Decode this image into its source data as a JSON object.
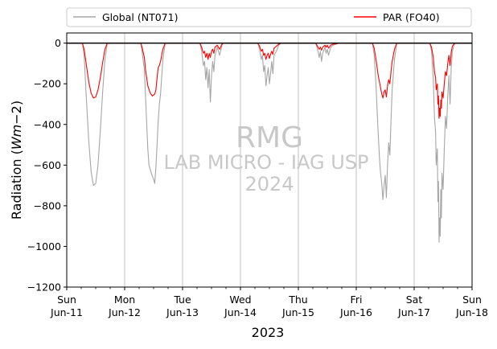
{
  "chart_data": {
    "type": "line",
    "title": "",
    "xlabel": "2023",
    "ylabel_prefix": "Radiation (",
    "ylabel_math": "Wm",
    "ylabel_minus": "−2",
    "ylabel_suffix": ")",
    "ylim": [
      -1200,
      50
    ],
    "xlim": [
      0,
      7
    ],
    "grid_x": true,
    "grid_y": false,
    "legend_placement": "top",
    "yticks": [
      0,
      -200,
      -400,
      -600,
      -800,
      -1000,
      -1200
    ],
    "ytick_labels": [
      "0",
      "−200",
      "−400",
      "−600",
      "−800",
      "−1000",
      "−1200"
    ],
    "xticks": [
      {
        "day": 0,
        "label1": "Sun",
        "label2": "Jun-11"
      },
      {
        "day": 1,
        "label1": "Mon",
        "label2": "Jun-12"
      },
      {
        "day": 2,
        "label1": "Tue",
        "label2": "Jun-13"
      },
      {
        "day": 3,
        "label1": "Wed",
        "label2": "Jun-14"
      },
      {
        "day": 4,
        "label1": "Thu",
        "label2": "Jun-15"
      },
      {
        "day": 5,
        "label1": "Fri",
        "label2": "Jun-16"
      },
      {
        "day": 6,
        "label1": "Sat",
        "label2": "Jun-17"
      },
      {
        "day": 7,
        "label1": "Sun",
        "label2": "Jun-18"
      }
    ],
    "x_unit": "days since Sun Jun-11 2023",
    "series": [
      {
        "name": "Global (NT071)",
        "color": "#a6a6a6",
        "points": [
          [
            0.0,
            0
          ],
          [
            0.27,
            0
          ],
          [
            0.3,
            -60
          ],
          [
            0.34,
            -280
          ],
          [
            0.38,
            -480
          ],
          [
            0.42,
            -630
          ],
          [
            0.46,
            -700
          ],
          [
            0.5,
            -690
          ],
          [
            0.54,
            -600
          ],
          [
            0.58,
            -430
          ],
          [
            0.62,
            -240
          ],
          [
            0.66,
            -80
          ],
          [
            0.7,
            0
          ],
          [
            1.0,
            0
          ],
          [
            1.28,
            0
          ],
          [
            1.3,
            -40
          ],
          [
            1.34,
            -130
          ],
          [
            1.36,
            -260
          ],
          [
            1.4,
            -520
          ],
          [
            1.42,
            -600
          ],
          [
            1.46,
            -640
          ],
          [
            1.5,
            -670
          ],
          [
            1.52,
            -690
          ],
          [
            1.54,
            -610
          ],
          [
            1.56,
            -500
          ],
          [
            1.58,
            -380
          ],
          [
            1.6,
            -300
          ],
          [
            1.62,
            -250
          ],
          [
            1.66,
            -80
          ],
          [
            1.7,
            0
          ],
          [
            2.0,
            0
          ],
          [
            2.3,
            0
          ],
          [
            2.33,
            -40
          ],
          [
            2.36,
            -110
          ],
          [
            2.38,
            -90
          ],
          [
            2.4,
            -180
          ],
          [
            2.42,
            -120
          ],
          [
            2.44,
            -220
          ],
          [
            2.46,
            -130
          ],
          [
            2.48,
            -290
          ],
          [
            2.5,
            -160
          ],
          [
            2.52,
            -90
          ],
          [
            2.54,
            -140
          ],
          [
            2.56,
            -60
          ],
          [
            2.6,
            -20
          ],
          [
            2.64,
            -60
          ],
          [
            2.68,
            -10
          ],
          [
            2.7,
            0
          ],
          [
            3.0,
            0
          ],
          [
            3.3,
            0
          ],
          [
            3.33,
            -30
          ],
          [
            3.36,
            -80
          ],
          [
            3.38,
            -60
          ],
          [
            3.4,
            -140
          ],
          [
            3.42,
            -110
          ],
          [
            3.44,
            -210
          ],
          [
            3.46,
            -160
          ],
          [
            3.48,
            -120
          ],
          [
            3.5,
            -200
          ],
          [
            3.52,
            -150
          ],
          [
            3.54,
            -90
          ],
          [
            3.56,
            -150
          ],
          [
            3.58,
            -60
          ],
          [
            3.62,
            -40
          ],
          [
            3.66,
            -10
          ],
          [
            3.7,
            0
          ],
          [
            4.0,
            0
          ],
          [
            4.3,
            0
          ],
          [
            4.33,
            -30
          ],
          [
            4.36,
            -70
          ],
          [
            4.38,
            -40
          ],
          [
            4.4,
            -90
          ],
          [
            4.42,
            -50
          ],
          [
            4.46,
            -20
          ],
          [
            4.48,
            -50
          ],
          [
            4.5,
            -30
          ],
          [
            4.52,
            -60
          ],
          [
            4.56,
            -20
          ],
          [
            4.6,
            -10
          ],
          [
            4.66,
            -5
          ],
          [
            4.7,
            0
          ],
          [
            5.0,
            0
          ],
          [
            5.28,
            0
          ],
          [
            5.31,
            -60
          ],
          [
            5.34,
            -200
          ],
          [
            5.36,
            -330
          ],
          [
            5.38,
            -450
          ],
          [
            5.4,
            -560
          ],
          [
            5.42,
            -640
          ],
          [
            5.44,
            -690
          ],
          [
            5.46,
            -770
          ],
          [
            5.48,
            -700
          ],
          [
            5.5,
            -650
          ],
          [
            5.52,
            -760
          ],
          [
            5.54,
            -600
          ],
          [
            5.56,
            -490
          ],
          [
            5.58,
            -550
          ],
          [
            5.6,
            -380
          ],
          [
            5.62,
            -230
          ],
          [
            5.66,
            -80
          ],
          [
            5.7,
            0
          ],
          [
            6.0,
            0
          ],
          [
            6.27,
            0
          ],
          [
            6.3,
            -40
          ],
          [
            6.33,
            -180
          ],
          [
            6.35,
            -360
          ],
          [
            6.37,
            -440
          ],
          [
            6.38,
            -600
          ],
          [
            6.4,
            -520
          ],
          [
            6.41,
            -780
          ],
          [
            6.42,
            -680
          ],
          [
            6.43,
            -980
          ],
          [
            6.44,
            -860
          ],
          [
            6.45,
            -950
          ],
          [
            6.46,
            -720
          ],
          [
            6.47,
            -860
          ],
          [
            6.48,
            -640
          ],
          [
            6.5,
            -720
          ],
          [
            6.52,
            -520
          ],
          [
            6.54,
            -360
          ],
          [
            6.56,
            -420
          ],
          [
            6.58,
            -260
          ],
          [
            6.6,
            -160
          ],
          [
            6.62,
            -300
          ],
          [
            6.64,
            -120
          ],
          [
            6.66,
            -40
          ],
          [
            6.7,
            0
          ],
          [
            7.0,
            0
          ]
        ]
      },
      {
        "name": "PAR (FO40)",
        "color": "#ff0000",
        "points": [
          [
            0.0,
            0
          ],
          [
            0.27,
            0
          ],
          [
            0.3,
            -30
          ],
          [
            0.34,
            -110
          ],
          [
            0.38,
            -190
          ],
          [
            0.42,
            -245
          ],
          [
            0.46,
            -270
          ],
          [
            0.5,
            -265
          ],
          [
            0.54,
            -230
          ],
          [
            0.58,
            -170
          ],
          [
            0.62,
            -95
          ],
          [
            0.66,
            -30
          ],
          [
            0.7,
            0
          ],
          [
            1.0,
            0
          ],
          [
            1.28,
            0
          ],
          [
            1.3,
            -20
          ],
          [
            1.34,
            -70
          ],
          [
            1.36,
            -130
          ],
          [
            1.4,
            -210
          ],
          [
            1.44,
            -245
          ],
          [
            1.48,
            -260
          ],
          [
            1.52,
            -250
          ],
          [
            1.54,
            -230
          ],
          [
            1.56,
            -170
          ],
          [
            1.58,
            -120
          ],
          [
            1.6,
            -110
          ],
          [
            1.62,
            -90
          ],
          [
            1.66,
            -30
          ],
          [
            1.7,
            0
          ],
          [
            2.0,
            0
          ],
          [
            2.3,
            0
          ],
          [
            2.33,
            -20
          ],
          [
            2.36,
            -50
          ],
          [
            2.38,
            -40
          ],
          [
            2.4,
            -70
          ],
          [
            2.42,
            -50
          ],
          [
            2.44,
            -80
          ],
          [
            2.46,
            -50
          ],
          [
            2.48,
            -70
          ],
          [
            2.5,
            -40
          ],
          [
            2.52,
            -30
          ],
          [
            2.54,
            -50
          ],
          [
            2.56,
            -20
          ],
          [
            2.6,
            -10
          ],
          [
            2.64,
            -30
          ],
          [
            2.68,
            -5
          ],
          [
            2.7,
            0
          ],
          [
            3.0,
            0
          ],
          [
            3.3,
            0
          ],
          [
            3.33,
            -15
          ],
          [
            3.36,
            -40
          ],
          [
            3.38,
            -30
          ],
          [
            3.4,
            -60
          ],
          [
            3.42,
            -50
          ],
          [
            3.44,
            -80
          ],
          [
            3.46,
            -60
          ],
          [
            3.48,
            -50
          ],
          [
            3.5,
            -75
          ],
          [
            3.52,
            -55
          ],
          [
            3.54,
            -40
          ],
          [
            3.56,
            -55
          ],
          [
            3.58,
            -25
          ],
          [
            3.62,
            -15
          ],
          [
            3.66,
            -5
          ],
          [
            3.7,
            0
          ],
          [
            4.0,
            0
          ],
          [
            4.3,
            0
          ],
          [
            4.33,
            -15
          ],
          [
            4.36,
            -30
          ],
          [
            4.38,
            -20
          ],
          [
            4.4,
            -35
          ],
          [
            4.42,
            -20
          ],
          [
            4.46,
            -10
          ],
          [
            4.48,
            -20
          ],
          [
            4.5,
            -10
          ],
          [
            4.52,
            -25
          ],
          [
            4.56,
            -10
          ],
          [
            4.6,
            -5
          ],
          [
            4.66,
            -2
          ],
          [
            4.7,
            0
          ],
          [
            5.0,
            0
          ],
          [
            5.28,
            0
          ],
          [
            5.31,
            -25
          ],
          [
            5.34,
            -80
          ],
          [
            5.36,
            -120
          ],
          [
            5.38,
            -160
          ],
          [
            5.4,
            -190
          ],
          [
            5.42,
            -220
          ],
          [
            5.44,
            -250
          ],
          [
            5.46,
            -270
          ],
          [
            5.48,
            -240
          ],
          [
            5.5,
            -230
          ],
          [
            5.52,
            -265
          ],
          [
            5.54,
            -210
          ],
          [
            5.56,
            -180
          ],
          [
            5.58,
            -200
          ],
          [
            5.6,
            -140
          ],
          [
            5.62,
            -90
          ],
          [
            5.66,
            -30
          ],
          [
            5.7,
            0
          ],
          [
            6.0,
            0
          ],
          [
            6.27,
            0
          ],
          [
            6.3,
            -20
          ],
          [
            6.33,
            -70
          ],
          [
            6.35,
            -140
          ],
          [
            6.37,
            -170
          ],
          [
            6.38,
            -230
          ],
          [
            6.4,
            -200
          ],
          [
            6.41,
            -300
          ],
          [
            6.42,
            -260
          ],
          [
            6.43,
            -370
          ],
          [
            6.44,
            -320
          ],
          [
            6.45,
            -360
          ],
          [
            6.46,
            -280
          ],
          [
            6.47,
            -320
          ],
          [
            6.48,
            -240
          ],
          [
            6.5,
            -270
          ],
          [
            6.52,
            -200
          ],
          [
            6.54,
            -140
          ],
          [
            6.56,
            -160
          ],
          [
            6.58,
            -100
          ],
          [
            6.6,
            -60
          ],
          [
            6.62,
            -110
          ],
          [
            6.64,
            -45
          ],
          [
            6.66,
            -15
          ],
          [
            6.7,
            0
          ],
          [
            7.0,
            0
          ]
        ]
      }
    ],
    "zero_line_color": "#000000",
    "watermark": {
      "line1": "RMG",
      "line2": "LAB MICRO - IAG USP",
      "line3": "2024"
    }
  }
}
